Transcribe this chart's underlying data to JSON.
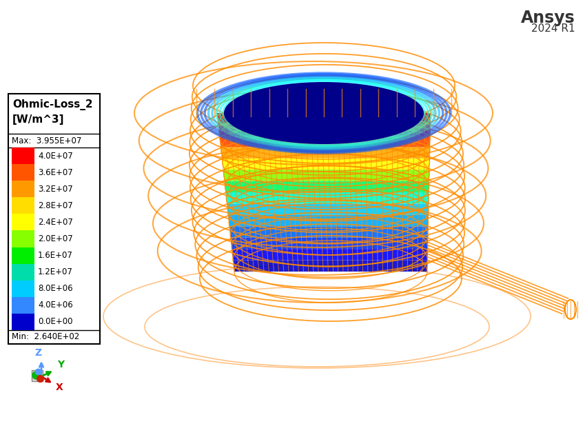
{
  "ansys_text": "Ansys",
  "ansys_subtext": "2024 R1",
  "legend_title_line1": "Ohmic-Loss_2",
  "legend_title_line2": "[W/m^3]",
  "max_label": "Max:  3.955E+07",
  "min_label": "Min:  2.640E+02",
  "colorbar_labels": [
    "4.0E+07",
    "3.6E+07",
    "3.2E+07",
    "2.8E+07",
    "2.4E+07",
    "2.0E+07",
    "1.6E+07",
    "1.2E+07",
    "8.0E+06",
    "4.0E+06",
    "0.0E+00"
  ],
  "colorbar_colors": [
    "#ff0000",
    "#ff5500",
    "#ff9900",
    "#ffdd00",
    "#ffff00",
    "#88ff00",
    "#00ee00",
    "#00ddaa",
    "#00ccff",
    "#3388ff",
    "#0000cc"
  ],
  "background_color": "#ffffff",
  "coil_color": "#ff8c00",
  "coil_alpha": 0.85,
  "ground_ellipse_color": "#ffaa55",
  "axes_text_color": "#444444"
}
